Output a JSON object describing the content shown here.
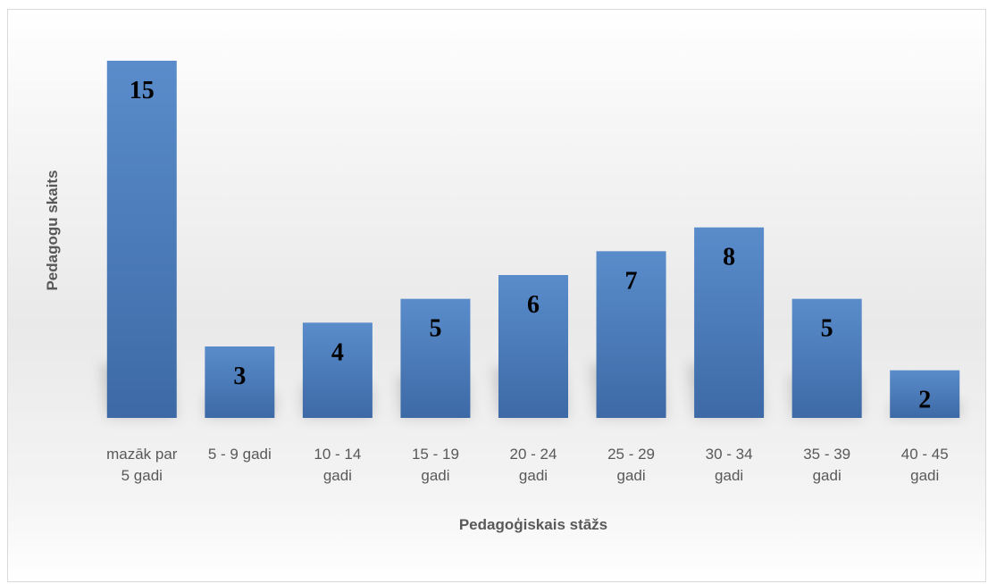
{
  "chart_data": {
    "type": "bar",
    "title": "",
    "xlabel": "Pedagoģiskais stāžs",
    "ylabel": "Pedagogu skaits",
    "categories": [
      [
        "mazāk par",
        "5 gadi"
      ],
      [
        "5 - 9 gadi"
      ],
      [
        "10 - 14",
        "gadi"
      ],
      [
        "15 - 19",
        "gadi"
      ],
      [
        "20 - 24",
        "gadi"
      ],
      [
        "25 - 29",
        "gadi"
      ],
      [
        "30 - 34",
        "gadi"
      ],
      [
        "35 - 39",
        "gadi"
      ],
      [
        "40 - 45",
        "gadi"
      ]
    ],
    "values": [
      15,
      3,
      4,
      5,
      6,
      7,
      8,
      5,
      2
    ],
    "ylim": [
      0,
      15
    ],
    "grid": false,
    "legend": "none",
    "data_labels": true,
    "bar_color": "#4f81bd"
  }
}
